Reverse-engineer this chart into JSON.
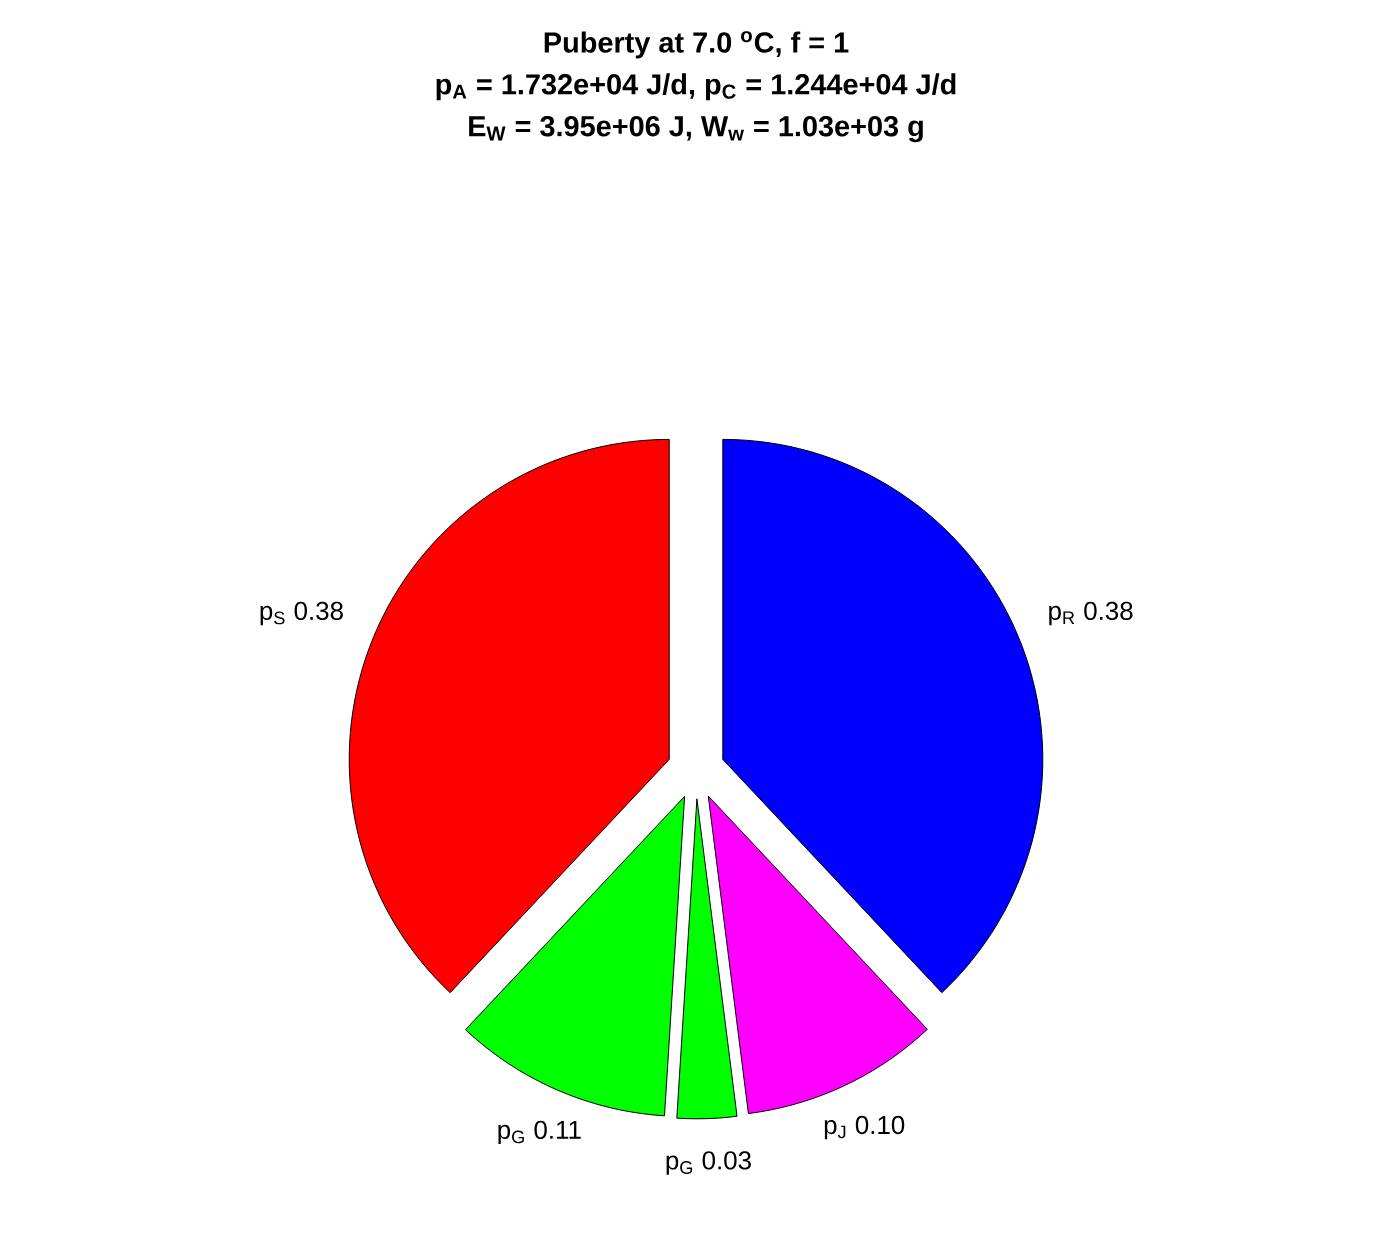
{
  "chart_data": {
    "type": "pie",
    "title": "Puberty at 7.0 $^{o}$C, f = 1",
    "subtitle": "p$_{A}$ = 1.732e+04 J/d,  p$_{C}$ = 1.244e+04 J/d",
    "annotations": [
      "E$_{W}$ = 3.95e+06 J, W$_{w}$ = 1.03e+03 g"
    ],
    "categories": [
      "p$_{S}$",
      "p$_{G}$",
      "p$_{G}$",
      "p$_{J}$",
      "p$_{R}$"
    ],
    "values": [
      0.38,
      0.11,
      0.03,
      0.1,
      0.38
    ],
    "value_labels": [
      "0.38",
      "0.11",
      "0.03",
      "0.10",
      "0.38"
    ],
    "colors": [
      "#ff0000",
      "#00ff00",
      "#00ff00",
      "#ff00ff",
      "#0000ff"
    ]
  }
}
